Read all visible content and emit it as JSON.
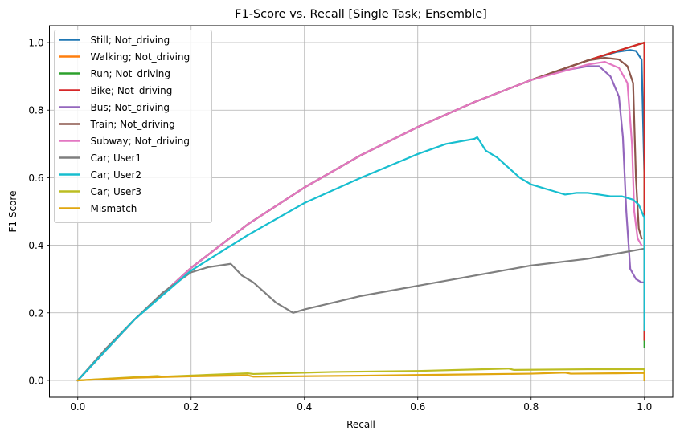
{
  "chart_data": {
    "type": "line",
    "title": "F1-Score vs. Recall [Single Task; Ensemble]",
    "xlabel": "Recall",
    "ylabel": "F1 Score",
    "xlim": [
      -0.05,
      1.05
    ],
    "ylim": [
      -0.05,
      1.05
    ],
    "xticks": [
      0.0,
      0.2,
      0.4,
      0.6,
      0.8,
      1.0
    ],
    "yticks": [
      0.0,
      0.2,
      0.4,
      0.6,
      0.8,
      1.0
    ],
    "xtick_labels": [
      "0.0",
      "0.2",
      "0.4",
      "0.6",
      "0.8",
      "1.0"
    ],
    "ytick_labels": [
      "0.0",
      "0.2",
      "0.4",
      "0.6",
      "0.8",
      "1.0"
    ],
    "grid": true,
    "legend_position": "top-left",
    "series": [
      {
        "name": "Still; Not_driving",
        "color": "#1f77b4",
        "x": [
          0,
          0.1,
          0.2,
          0.3,
          0.4,
          0.5,
          0.6,
          0.7,
          0.8,
          0.9,
          0.95,
          0.975,
          0.985,
          0.995,
          1.0,
          1.0
        ],
        "y": [
          0,
          0.18,
          0.333,
          0.462,
          0.571,
          0.667,
          0.75,
          0.824,
          0.889,
          0.947,
          0.972,
          0.978,
          0.975,
          0.95,
          0.6,
          0.15
        ]
      },
      {
        "name": "Walking; Not_driving",
        "color": "#ff7f0e",
        "x": [
          0,
          0.1,
          0.2,
          0.3,
          0.4,
          0.5,
          0.6,
          0.7,
          0.8,
          0.9,
          0.95,
          0.99,
          1.0,
          1.0
        ],
        "y": [
          0,
          0.18,
          0.333,
          0.462,
          0.571,
          0.667,
          0.75,
          0.824,
          0.889,
          0.947,
          0.974,
          0.995,
          1.0,
          0.12
        ]
      },
      {
        "name": "Run; Not_driving",
        "color": "#2ca02c",
        "x": [
          0,
          0.1,
          0.2,
          0.3,
          0.4,
          0.5,
          0.6,
          0.7,
          0.8,
          0.9,
          0.95,
          0.99,
          1.0,
          1.0
        ],
        "y": [
          0,
          0.18,
          0.333,
          0.462,
          0.571,
          0.667,
          0.75,
          0.824,
          0.889,
          0.947,
          0.974,
          0.995,
          1.0,
          0.1
        ]
      },
      {
        "name": "Bike; Not_driving",
        "color": "#d62728",
        "x": [
          0,
          0.1,
          0.2,
          0.3,
          0.4,
          0.5,
          0.6,
          0.7,
          0.8,
          0.9,
          0.95,
          0.99,
          1.0,
          1.0
        ],
        "y": [
          0,
          0.18,
          0.333,
          0.462,
          0.571,
          0.667,
          0.75,
          0.824,
          0.889,
          0.947,
          0.974,
          0.995,
          1.0,
          0.12
        ]
      },
      {
        "name": "Bus; Not_driving",
        "color": "#9467bd",
        "x": [
          0,
          0.1,
          0.2,
          0.3,
          0.4,
          0.5,
          0.6,
          0.7,
          0.8,
          0.85,
          0.9,
          0.92,
          0.94,
          0.955,
          0.962,
          0.968,
          0.975,
          0.985,
          0.995,
          0.998
        ],
        "y": [
          0,
          0.18,
          0.333,
          0.462,
          0.571,
          0.667,
          0.75,
          0.824,
          0.889,
          0.915,
          0.93,
          0.93,
          0.9,
          0.84,
          0.72,
          0.5,
          0.33,
          0.3,
          0.29,
          0.29
        ]
      },
      {
        "name": "Train; Not_driving",
        "color": "#8c564b",
        "x": [
          0,
          0.1,
          0.2,
          0.3,
          0.4,
          0.5,
          0.6,
          0.7,
          0.8,
          0.9,
          0.93,
          0.955,
          0.97,
          0.98,
          0.985,
          0.99,
          0.995
        ],
        "y": [
          0,
          0.18,
          0.333,
          0.462,
          0.571,
          0.667,
          0.75,
          0.824,
          0.889,
          0.947,
          0.955,
          0.95,
          0.93,
          0.88,
          0.6,
          0.45,
          0.42
        ]
      },
      {
        "name": "Subway; Not_driving",
        "color": "#e377c2",
        "x": [
          0,
          0.1,
          0.2,
          0.3,
          0.4,
          0.5,
          0.6,
          0.7,
          0.8,
          0.9,
          0.93,
          0.955,
          0.97,
          0.978,
          0.982,
          0.988,
          0.995
        ],
        "y": [
          0,
          0.18,
          0.333,
          0.462,
          0.571,
          0.667,
          0.75,
          0.824,
          0.889,
          0.935,
          0.943,
          0.925,
          0.88,
          0.7,
          0.5,
          0.42,
          0.4
        ]
      },
      {
        "name": "Car; User1",
        "color": "#7f7f7f",
        "x": [
          0,
          0.05,
          0.1,
          0.15,
          0.2,
          0.23,
          0.25,
          0.27,
          0.29,
          0.31,
          0.33,
          0.35,
          0.37,
          0.38,
          0.4,
          0.45,
          0.5,
          0.6,
          0.7,
          0.8,
          0.9,
          0.95,
          1.0,
          1.0
        ],
        "y": [
          0,
          0.095,
          0.18,
          0.26,
          0.32,
          0.335,
          0.34,
          0.345,
          0.31,
          0.29,
          0.26,
          0.23,
          0.21,
          0.2,
          0.21,
          0.23,
          0.25,
          0.28,
          0.31,
          0.34,
          0.36,
          0.375,
          0.39,
          0.17
        ]
      },
      {
        "name": "Car; User2",
        "color": "#17becf",
        "x": [
          0,
          0.1,
          0.2,
          0.3,
          0.4,
          0.5,
          0.6,
          0.65,
          0.7,
          0.705,
          0.72,
          0.74,
          0.76,
          0.78,
          0.8,
          0.82,
          0.84,
          0.86,
          0.88,
          0.9,
          0.92,
          0.94,
          0.96,
          0.98,
          0.99,
          1.0,
          1.0
        ],
        "y": [
          0,
          0.18,
          0.325,
          0.43,
          0.525,
          0.6,
          0.67,
          0.7,
          0.715,
          0.72,
          0.68,
          0.66,
          0.63,
          0.6,
          0.58,
          0.57,
          0.56,
          0.55,
          0.555,
          0.555,
          0.55,
          0.545,
          0.545,
          0.535,
          0.52,
          0.48,
          0.15
        ]
      },
      {
        "name": "Car; User3",
        "color": "#bcbd22",
        "x": [
          0,
          0.14,
          0.15,
          0.3,
          0.31,
          0.45,
          0.6,
          0.76,
          0.77,
          0.9,
          1.0,
          1.0
        ],
        "y": [
          0,
          0.013,
          0.011,
          0.021,
          0.019,
          0.025,
          0.028,
          0.035,
          0.031,
          0.033,
          0.033,
          0.0
        ]
      },
      {
        "name": "Mismatch",
        "color": "#e0a60f",
        "x": [
          0,
          0.1,
          0.2,
          0.3,
          0.31,
          0.5,
          0.7,
          0.8,
          0.86,
          0.87,
          0.95,
          1.0,
          1.0
        ],
        "y": [
          0,
          0.008,
          0.012,
          0.015,
          0.011,
          0.014,
          0.018,
          0.02,
          0.023,
          0.02,
          0.021,
          0.022,
          0.0
        ]
      }
    ]
  }
}
